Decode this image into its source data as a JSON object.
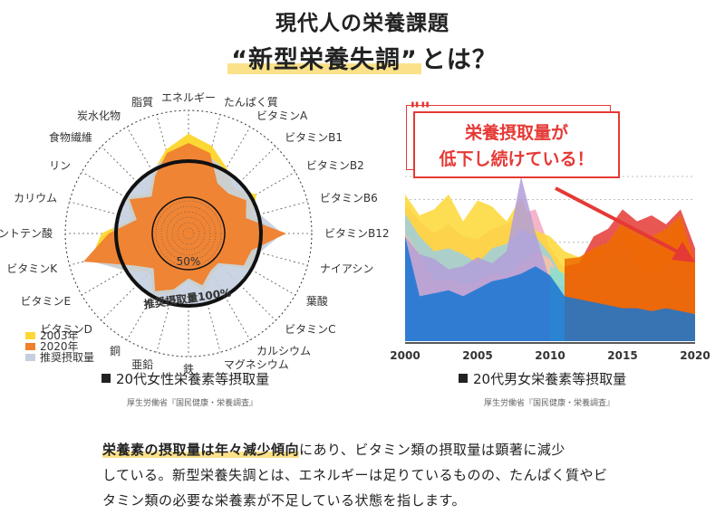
{
  "header": {
    "title": "現代人の栄養課題",
    "subtitle_prefix": "“新型栄養失調”",
    "subtitle_suffix": "とは？"
  },
  "colors": {
    "c2003": "#fdd835",
    "c2020": "#f0802c",
    "recommended": "#c5cfdf",
    "accent": "#e53935",
    "highlight": "#fbe28a"
  },
  "radar": {
    "caption": "20代女性栄養素等摂取量",
    "source": "厚生労働省『国民健康・栄養調査』",
    "ring_50": "50%",
    "ring_100": "推奨摂取量100%",
    "legend": [
      "2003年",
      "2020年",
      "推奨摂取量"
    ]
  },
  "area": {
    "caption": "20代男女栄養素等摂取量",
    "source": "厚生労働省『国民健康・栄養調査』",
    "callout_line1": "栄養摂取量が",
    "callout_line2": "低下し続けている！",
    "callout_mark": "\"\""
  },
  "paragraph": {
    "emphasis": "栄養素の摂取量は年々減少傾向",
    "line1_rest": "にあり、ビタミン類の摂取量は顕著に減少",
    "line2": "している。新型栄養失調とは、エネルギーは足りているものの、たんぱく質やビ",
    "line3": "タミン類の必要な栄養素が不足している状態を指します。"
  },
  "chart_data": [
    {
      "type": "radar",
      "title": "20代女性栄養素等摂取量",
      "categories": [
        "エネルギー",
        "たんぱく質",
        "ビタミンA",
        "ビタミンB1",
        "ビタミンB2",
        "ビタミンB6",
        "ビタミンB12",
        "ナイアシン",
        "葉酸",
        "ビタミンC",
        "カルシウム",
        "マグネシウム",
        "鉄",
        "亜鉛",
        "銅",
        "ビタミンD",
        "ビタミンE",
        "ビタミンK",
        "パントテン酸",
        "カリウム",
        "リン",
        "食物繊維",
        "炭水化物",
        "脂質"
      ],
      "series": [
        {
          "name": "2003年",
          "values": [
            138,
            125,
            105,
            88,
            108,
            92,
            125,
            98,
            98,
            62,
            65,
            82,
            65,
            85,
            98,
            75,
            102,
            140,
            120,
            80,
            100,
            78,
            98,
            120
          ]
        },
        {
          "name": "2020年",
          "values": [
            125,
            115,
            80,
            78,
            92,
            82,
            135,
            90,
            88,
            58,
            60,
            74,
            62,
            80,
            92,
            68,
            88,
            150,
            110,
            74,
            94,
            72,
            92,
            115
          ]
        },
        {
          "name": "推奨摂取量",
          "values": [
            100,
            100,
            100,
            100,
            100,
            100,
            100,
            100,
            100,
            100,
            100,
            100,
            100,
            100,
            100,
            100,
            100,
            100,
            100,
            100,
            100,
            100,
            100,
            100
          ]
        }
      ],
      "rings_labeled": [
        "50%",
        "推奨摂取量100%"
      ],
      "legend_position": "bottom-left"
    },
    {
      "type": "area",
      "title": "20代男女栄養素等摂取量",
      "x": [
        2000,
        2001,
        2002,
        2003,
        2004,
        2005,
        2006,
        2007,
        2008,
        2009,
        2010,
        2011,
        2012,
        2013,
        2014,
        2015,
        2016,
        2017,
        2018,
        2019,
        2020
      ],
      "xticks": [
        2000,
        2005,
        2010,
        2015,
        2020
      ],
      "series": [
        {
          "name": "",
          "color": "#1976d2",
          "values": [
            70,
            30,
            32,
            34,
            30,
            35,
            40,
            42,
            45,
            50,
            44,
            30,
            28,
            26,
            24,
            22,
            22,
            20,
            22,
            20,
            18
          ]
        },
        {
          "name": "",
          "color": "#f7c1a8",
          "values": [
            72,
            58,
            40,
            42,
            38,
            40,
            45,
            44,
            52,
            60,
            55,
            35,
            40,
            38,
            36,
            34,
            32,
            36,
            38,
            40,
            38
          ]
        },
        {
          "name": "",
          "color": "#9ecfdf",
          "values": [
            85,
            70,
            60,
            62,
            58,
            52,
            62,
            65,
            75,
            70,
            58,
            40,
            42,
            55,
            60,
            70,
            50,
            45,
            50,
            55,
            45
          ]
        },
        {
          "name": "",
          "color": "#f3a7c0",
          "values": [
            92,
            80,
            72,
            78,
            70,
            68,
            75,
            78,
            85,
            88,
            62,
            48,
            50,
            60,
            55,
            75,
            58,
            52,
            60,
            50,
            48
          ]
        },
        {
          "name": "",
          "color": "#88e0d0",
          "values": [
            0,
            0,
            0,
            0,
            0,
            0,
            0,
            0,
            0,
            0,
            50,
            45,
            48,
            54,
            48,
            60,
            44,
            42,
            40,
            38,
            36
          ]
        },
        {
          "name": "",
          "color": "#ef6c00",
          "values": [
            0,
            0,
            0,
            0,
            0,
            0,
            0,
            0,
            0,
            0,
            0,
            55,
            56,
            62,
            66,
            80,
            72,
            70,
            75,
            84,
            52
          ]
        },
        {
          "name": "",
          "color": "#e53935",
          "values": [
            0,
            0,
            0,
            0,
            0,
            0,
            0,
            0,
            0,
            0,
            0,
            50,
            52,
            70,
            75,
            88,
            80,
            84,
            78,
            88,
            62
          ]
        },
        {
          "name": "",
          "color": "#fdd835",
          "values": [
            98,
            84,
            88,
            98,
            80,
            94,
            90,
            80,
            96,
            74,
            70,
            60,
            56,
            60,
            62,
            74,
            70,
            60,
            66,
            80,
            55
          ]
        },
        {
          "name": "",
          "color": "#b39ddb",
          "values": [
            70,
            58,
            55,
            48,
            50,
            56,
            52,
            60,
            110,
            72,
            40,
            36,
            34,
            30,
            40,
            36,
            42,
            38,
            34,
            40,
            30
          ]
        }
      ],
      "ylim": [
        0,
        110
      ],
      "grid": true,
      "trend_arrow": "downward"
    }
  ]
}
